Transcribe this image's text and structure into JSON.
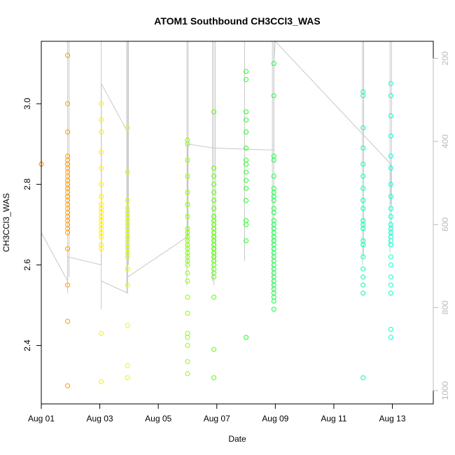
{
  "chart_data": {
    "type": "scatter",
    "title": "ATOM1 Southbound CH3CCl3_WAS",
    "xlabel": "Date",
    "ylabel": "CH3CCl3_WAS",
    "xlim": [
      0,
      13.4
    ],
    "ylim": [
      2.255,
      3.155
    ],
    "x_ticks": [
      {
        "value": 0,
        "label": "Aug 01"
      },
      {
        "value": 2,
        "label": "Aug 03"
      },
      {
        "value": 4,
        "label": "Aug 05"
      },
      {
        "value": 6,
        "label": "Aug 07"
      },
      {
        "value": 8,
        "label": "Aug 09"
      },
      {
        "value": 10,
        "label": "Aug 11"
      },
      {
        "value": 12,
        "label": "Aug 13"
      }
    ],
    "y_ticks": [
      {
        "value": 2.4,
        "label": "2.4"
      },
      {
        "value": 2.6,
        "label": "2.6"
      },
      {
        "value": 2.8,
        "label": "2.8"
      },
      {
        "value": 3.0,
        "label": "3.0"
      }
    ],
    "right_axis": {
      "ylim": [
        1032,
        159
      ],
      "ticks": [
        {
          "value": 200,
          "label": "200"
        },
        {
          "value": 400,
          "label": "400"
        },
        {
          "value": 600,
          "label": "600"
        },
        {
          "value": 800,
          "label": "800"
        },
        {
          "value": 1000,
          "label": "1000"
        }
      ],
      "color": "#bbbbbb"
    },
    "grid": false,
    "legend": "none",
    "line_color": "#c8c8c8",
    "groups": [
      {
        "x": 0.0,
        "color": "#ff8c00",
        "points": [
          2.85
        ]
      },
      {
        "x": 0.9,
        "color": "#ff9900",
        "points": [
          3.12,
          3.0,
          2.93,
          2.87,
          2.86,
          2.85,
          2.85,
          2.84,
          2.83,
          2.82,
          2.81,
          2.81,
          2.8,
          2.8,
          2.79,
          2.79,
          2.78,
          2.77,
          2.77,
          2.76,
          2.75,
          2.74,
          2.73,
          2.72,
          2.71,
          2.7,
          2.69,
          2.68,
          2.64,
          2.55,
          2.46,
          2.3
        ]
      },
      {
        "x": 2.05,
        "color": "#ffee00",
        "points": [
          3.0,
          2.96,
          2.93,
          2.88,
          2.84,
          2.8,
          2.77,
          2.75,
          2.74,
          2.73,
          2.72,
          2.71,
          2.7,
          2.69,
          2.68,
          2.67,
          2.65,
          2.64,
          2.43,
          2.31
        ]
      },
      {
        "x": 2.95,
        "color": "#ddff00",
        "points": [
          2.94,
          2.83,
          2.76,
          2.74,
          2.73,
          2.72,
          2.71,
          2.7,
          2.7,
          2.69,
          2.68,
          2.67,
          2.67,
          2.66,
          2.65,
          2.64,
          2.63,
          2.62,
          2.59,
          2.55,
          2.45,
          2.35,
          2.32
        ]
      },
      {
        "x": 5.0,
        "color": "#88ff00",
        "points": [
          2.91,
          2.9,
          2.86,
          2.82,
          2.78,
          2.75,
          2.72,
          2.69,
          2.68,
          2.67,
          2.66,
          2.65,
          2.64,
          2.63,
          2.62,
          2.61,
          2.6,
          2.58,
          2.56,
          2.52,
          2.48,
          2.43,
          2.42,
          2.4,
          2.36,
          2.33
        ]
      },
      {
        "x": 5.9,
        "color": "#55ff00",
        "points": [
          2.98,
          2.84,
          2.82,
          2.8,
          2.78,
          2.76,
          2.74,
          2.72,
          2.71,
          2.7,
          2.69,
          2.68,
          2.67,
          2.67,
          2.66,
          2.66,
          2.65,
          2.65,
          2.64,
          2.64,
          2.63,
          2.63,
          2.62,
          2.62,
          2.61,
          2.6,
          2.59,
          2.58,
          2.57,
          2.52,
          2.39,
          2.32
        ]
      },
      {
        "x": 7.0,
        "color": "#22ff22",
        "points": [
          3.08,
          3.06,
          2.98,
          2.96,
          2.93,
          2.89,
          2.86,
          2.85,
          2.83,
          2.81,
          2.79,
          2.76,
          2.71,
          2.7,
          2.66,
          2.42
        ]
      },
      {
        "x": 7.95,
        "color": "#11ff44",
        "points": [
          3.1,
          3.02,
          2.87,
          2.86,
          2.82,
          2.79,
          2.78,
          2.77,
          2.76,
          2.74,
          2.73,
          2.71,
          2.7,
          2.69,
          2.68,
          2.67,
          2.66,
          2.66,
          2.65,
          2.64,
          2.63,
          2.62,
          2.61,
          2.6,
          2.59,
          2.58,
          2.57,
          2.56,
          2.55,
          2.54,
          2.53,
          2.52,
          2.51,
          2.49
        ]
      },
      {
        "x": 11.0,
        "color": "#00ffaa",
        "points": [
          3.03,
          3.02,
          2.94,
          2.89,
          2.85,
          2.82,
          2.79,
          2.76,
          2.74,
          2.71,
          2.7,
          2.69,
          2.66,
          2.65,
          2.62,
          2.59,
          2.57,
          2.55,
          2.53,
          2.32
        ]
      },
      {
        "x": 11.95,
        "color": "#00ffcc",
        "points": [
          3.05,
          3.02,
          2.97,
          2.92,
          2.87,
          2.84,
          2.8,
          2.77,
          2.74,
          2.72,
          2.7,
          2.69,
          2.68,
          2.67,
          2.66,
          2.65,
          2.62,
          2.6,
          2.57,
          2.55,
          2.53,
          2.44,
          2.42
        ]
      }
    ],
    "line_path": [
      [
        0.0,
        2.68
      ],
      [
        0.9,
        2.56
      ],
      [
        0.9,
        2.62
      ],
      [
        2.05,
        2.6
      ],
      [
        2.05,
        3.05
      ],
      [
        2.95,
        2.93
      ],
      [
        2.95,
        2.53
      ],
      [
        2.05,
        2.56
      ],
      [
        2.95,
        2.53
      ],
      [
        2.95,
        2.57
      ],
      [
        5.0,
        2.67
      ],
      [
        5.0,
        2.9
      ],
      [
        5.9,
        2.89
      ],
      [
        7.95,
        2.885
      ],
      [
        7.95,
        3.1
      ],
      [
        8.0,
        3.2
      ],
      [
        11.95,
        2.85
      ],
      [
        11.95,
        2.75
      ]
    ],
    "spikes": [
      {
        "x": 0.9,
        "from": 2.53,
        "to": 3.2
      },
      {
        "x": 0.95,
        "from": 2.57,
        "to": 3.2
      },
      {
        "x": 2.05,
        "from": 2.49,
        "to": 3.2
      },
      {
        "x": 2.92,
        "from": 2.53,
        "to": 3.2
      },
      {
        "x": 2.95,
        "from": 2.55,
        "to": 3.2
      },
      {
        "x": 2.98,
        "from": 2.6,
        "to": 3.2
      },
      {
        "x": 4.98,
        "from": 2.55,
        "to": 3.2
      },
      {
        "x": 5.02,
        "from": 2.6,
        "to": 3.2
      },
      {
        "x": 5.85,
        "from": 2.56,
        "to": 3.2
      },
      {
        "x": 5.9,
        "from": 2.55,
        "to": 3.2
      },
      {
        "x": 5.95,
        "from": 2.6,
        "to": 3.2
      },
      {
        "x": 6.95,
        "from": 2.61,
        "to": 3.2
      },
      {
        "x": 7.9,
        "from": 2.54,
        "to": 3.2
      },
      {
        "x": 7.95,
        "from": 2.52,
        "to": 3.2
      },
      {
        "x": 10.98,
        "from": 2.6,
        "to": 3.2
      },
      {
        "x": 11.02,
        "from": 2.62,
        "to": 3.2
      },
      {
        "x": 11.92,
        "from": 2.63,
        "to": 3.2
      },
      {
        "x": 11.97,
        "from": 2.67,
        "to": 3.2
      }
    ]
  }
}
